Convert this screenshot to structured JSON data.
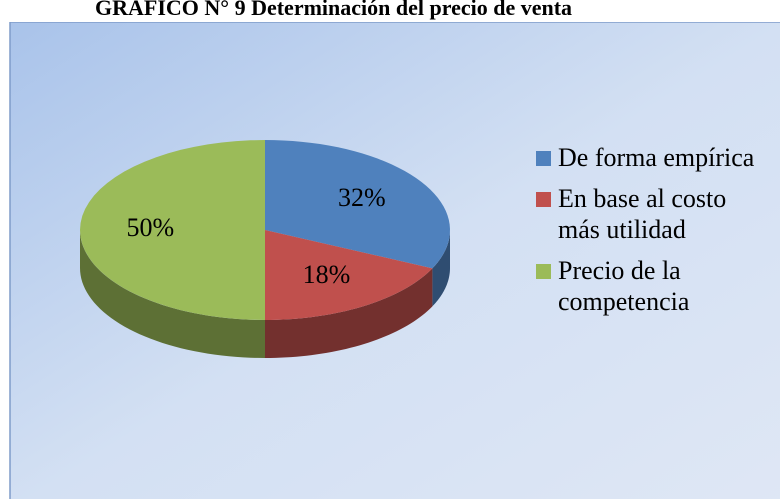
{
  "chart_data": {
    "type": "pie",
    "title": "GRÁFICO N° 9 Determinación del precio de venta",
    "categories": [
      "De forma empírica",
      "En base al costo más utilidad",
      "Precio de la competencia"
    ],
    "values": [
      32,
      18,
      50
    ],
    "value_labels": [
      "32%",
      "18%",
      "50%"
    ],
    "colors": [
      "#4f81bd",
      "#c0504d",
      "#9bbb59"
    ],
    "legend": "right"
  }
}
